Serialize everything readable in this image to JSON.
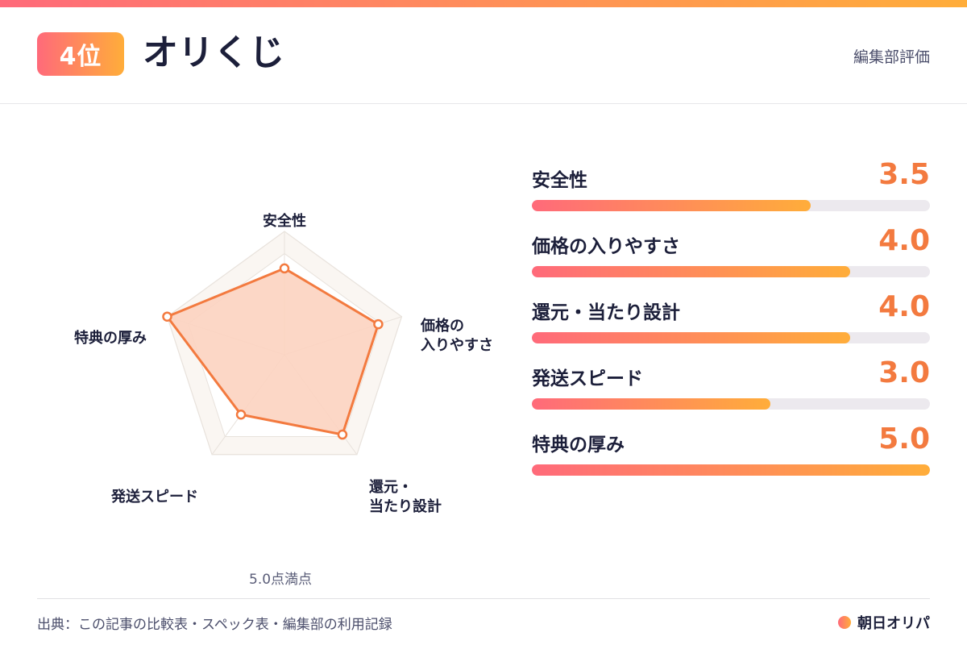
{
  "header": {
    "rank": "4位",
    "title": "オリくじ",
    "note": "編集部評価"
  },
  "chart_data": {
    "type": "radar",
    "max": 5.0,
    "axes": [
      "安全性",
      "価格の入りやすさ",
      "還元・当たり設計",
      "発送スピード",
      "特典の厚み"
    ],
    "axis_labels": [
      [
        "安全性"
      ],
      [
        "価格の",
        "入りやすさ"
      ],
      [
        "還元・",
        "当たり設計"
      ],
      [
        "発送スピード"
      ],
      [
        "特典の厚み"
      ]
    ],
    "values": [
      3.5,
      4.0,
      4.0,
      3.0,
      5.0
    ],
    "note": "5.0点満点",
    "colors": {
      "fill": "#fcd3c0",
      "line": "#f37a3f",
      "grid": "#e8e2dc",
      "ring": "#faf6f2"
    }
  },
  "scores": [
    {
      "label": "安全性",
      "value": "3.5",
      "ratio": 0.7
    },
    {
      "label": "価格の入りやすさ",
      "value": "4.0",
      "ratio": 0.8
    },
    {
      "label": "還元・当たり設計",
      "value": "4.0",
      "ratio": 0.8
    },
    {
      "label": "発送スピード",
      "value": "3.0",
      "ratio": 0.6
    },
    {
      "label": "特典の厚み",
      "value": "5.0",
      "ratio": 1.0
    }
  ],
  "footer": {
    "source": "出典：この記事の比較表・スペック表・編集部の利用記録",
    "brand": "朝日オリパ"
  },
  "colors": {
    "accent_start": "#ff6a7a",
    "accent_end": "#ffad3a",
    "score": "#f37a3f"
  }
}
